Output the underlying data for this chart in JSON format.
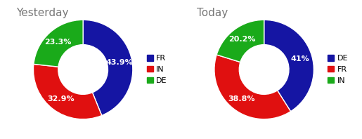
{
  "yesterday": {
    "title": "Yesterday",
    "labels": [
      "FR",
      "IN",
      "DE"
    ],
    "values": [
      43.9,
      32.9,
      23.3
    ],
    "colors": [
      "#1515a3",
      "#e01010",
      "#1aaa1a"
    ],
    "legend_labels": [
      "FR",
      "IN",
      "DE"
    ],
    "autopct_format": [
      "43.9%",
      "32.9%",
      "23.3%"
    ]
  },
  "today": {
    "title": "Today",
    "labels": [
      "DE",
      "FR",
      "IN"
    ],
    "values": [
      41.0,
      38.8,
      20.2
    ],
    "colors": [
      "#1515a3",
      "#e01010",
      "#1aaa1a"
    ],
    "legend_labels": [
      "DE",
      "FR",
      "IN"
    ],
    "autopct_format": [
      "41%",
      "38.8%",
      "20.2%"
    ]
  },
  "background_color": "#ffffff",
  "label_color": "#ffffff",
  "title_color": "#777777",
  "title_fontsize": 11,
  "label_fontsize": 8,
  "legend_fontsize": 8,
  "wedge_linewidth": 1.0,
  "wedge_edgecolor": "#ffffff",
  "border_color": "#cccccc"
}
